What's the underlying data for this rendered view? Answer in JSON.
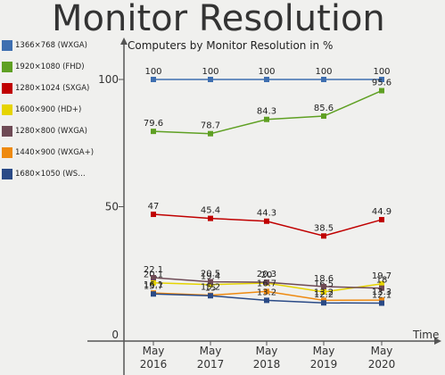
{
  "title": "Monitor Resolution",
  "chart_data": {
    "type": "line",
    "title": "Monitor Resolution",
    "subtitle": "Computers by Monitor Resolution in %",
    "xlabel": "Time",
    "ylabel": "",
    "ylim": [
      0,
      100
    ],
    "yticks": [
      0,
      50,
      100
    ],
    "categories": [
      "May 2016",
      "May 2017",
      "May 2018",
      "May 2019",
      "May 2020"
    ],
    "categories_top": [
      "May",
      "May",
      "May",
      "May",
      "May"
    ],
    "categories_bottom": [
      "2016",
      "2017",
      "2018",
      "2019",
      "2020"
    ],
    "legend_position": "left",
    "grid": false,
    "series": [
      {
        "name": "1366×768 (WXGA)",
        "color": "#3f6fb0",
        "values": [
          100,
          100,
          100,
          100,
          100
        ],
        "labels": [
          "100",
          "100",
          "100",
          "100",
          "100"
        ]
      },
      {
        "name": "1920×1080 (FHD)",
        "color": "#5fa023",
        "values": [
          79.6,
          78.7,
          84.3,
          85.6,
          95.6
        ],
        "labels": [
          "79.6",
          "78.7",
          "84.3",
          "85.6",
          "95.6"
        ]
      },
      {
        "name": "1280×1024 (SXGA)",
        "color": "#c00000",
        "values": [
          47,
          45.4,
          44.3,
          38.5,
          44.9
        ],
        "labels": [
          "47",
          "45.4",
          "44.3",
          "38.5",
          "44.9"
        ]
      },
      {
        "name": "1600×900 (HD+)",
        "color": "#e6d400",
        "values": [
          20.1,
          19.4,
          20.0,
          16.5,
          19.7
        ],
        "labels": [
          "20.1",
          "19.4",
          "20",
          "16.5",
          "19.7"
        ]
      },
      {
        "name": "1280×800 (WXGA)",
        "color": "#6e4a55",
        "values": [
          22.1,
          20.5,
          20.3,
          18.6,
          18.0
        ],
        "labels": [
          "22.1",
          "20.5",
          "20.3",
          "18.6",
          "18"
        ]
      },
      {
        "name": "1440×900 (WXGA+)",
        "color": "#ee8a10",
        "values": [
          16.1,
          15.2,
          16.7,
          13.2,
          13.3
        ],
        "labels": [
          "16.1",
          "15.2",
          "16.7",
          "13.2",
          "13.3"
        ]
      },
      {
        "name": "1680×1050 (WS…",
        "color": "#2a4a86",
        "values": [
          15.7,
          15.0,
          13.2,
          12.2,
          12.1
        ],
        "labels": [
          "15.7",
          "15",
          "13.2",
          "12.2",
          "12.1"
        ]
      }
    ]
  }
}
